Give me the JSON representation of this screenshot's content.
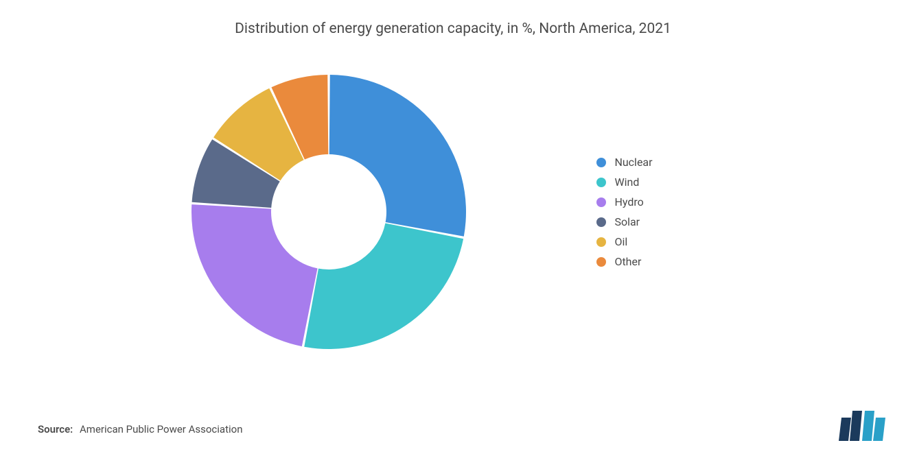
{
  "chart": {
    "type": "donut",
    "title": "Distribution of energy generation capacity, in %, North America, 2021",
    "title_fontsize": 21,
    "title_color": "#4a4a4a",
    "background_color": "#ffffff",
    "inner_radius_ratio": 0.42,
    "slices": [
      {
        "label": "Nuclear",
        "value": 28,
        "color": "#3f8fd9"
      },
      {
        "label": "Wind",
        "value": 25,
        "color": "#3dc5cc"
      },
      {
        "label": "Hydro",
        "value": 23,
        "color": "#a77ded"
      },
      {
        "label": "Solar",
        "value": 8,
        "color": "#5a6a8a"
      },
      {
        "label": "Oil",
        "value": 9,
        "color": "#e6b441"
      },
      {
        "label": "Other",
        "value": 7,
        "color": "#ea8a3c"
      }
    ],
    "slice_gap_deg": 1.0,
    "start_angle_deg": -90
  },
  "legend": {
    "dot_size": 14,
    "label_fontsize": 16,
    "label_color": "#4a4a4a"
  },
  "source": {
    "label": "Source:",
    "text": "American Public Power Association",
    "fontsize": 15,
    "color": "#4a4a4a"
  },
  "logo": {
    "bar_colors": [
      "#1b3a5c",
      "#1b3a5c",
      "#2aa0c8",
      "#2aa0c8"
    ]
  }
}
